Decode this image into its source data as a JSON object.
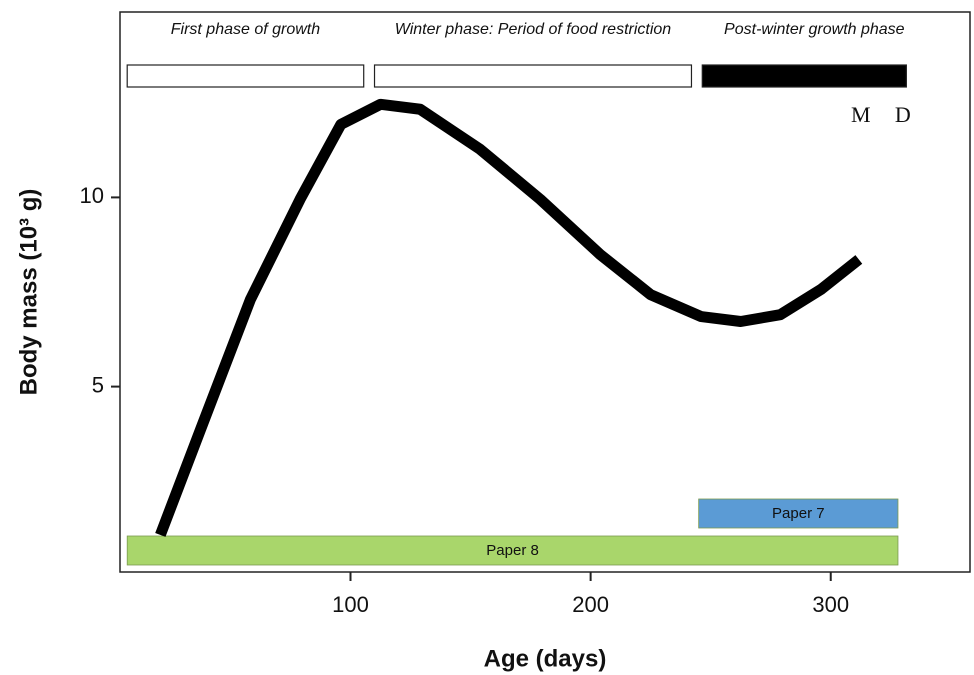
{
  "chart_data": {
    "type": "line",
    "xlabel": "Age (days)",
    "ylabel": "Body mass (10³ g)",
    "xlim": [
      4,
      358
    ],
    "ylim": [
      0.1,
      14.9
    ],
    "xticks": [
      100,
      200,
      300
    ],
    "yticks": [
      5,
      10
    ],
    "series": [
      {
        "color": "#000000",
        "x": [
          20.8,
          37.5,
          58.3,
          79,
          96,
          112.5,
          129,
          154,
          179,
          204,
          225,
          246,
          262.5,
          279,
          296,
          311.7
        ],
        "values": [
          1.08,
          3.86,
          7.3,
          9.95,
          11.93,
          12.46,
          12.33,
          11.27,
          9.95,
          8.49,
          7.43,
          6.85,
          6.72,
          6.9,
          7.57,
          8.36
        ]
      }
    ],
    "phases": [
      {
        "label": "First phase of growth",
        "start": 7,
        "end": 105.5,
        "color": "#ffffff"
      },
      {
        "label": "Winter phase: Period of food restriction",
        "start": 110,
        "end": 242,
        "color": "#ffffff"
      },
      {
        "label": "Post-winter growth phase",
        "start": 246.5,
        "end": 331.5,
        "color": "#000000"
      }
    ],
    "periods": [
      {
        "label": "Paper 7",
        "start": 245,
        "end": 328,
        "color": "#5b9bd5"
      },
      {
        "label": "Paper 8",
        "start": 7,
        "end": 328,
        "color": "#a9d66b"
      }
    ],
    "annotations": [
      {
        "text": "M",
        "x": 312.5
      },
      {
        "text": "D",
        "x": 330
      }
    ]
  }
}
